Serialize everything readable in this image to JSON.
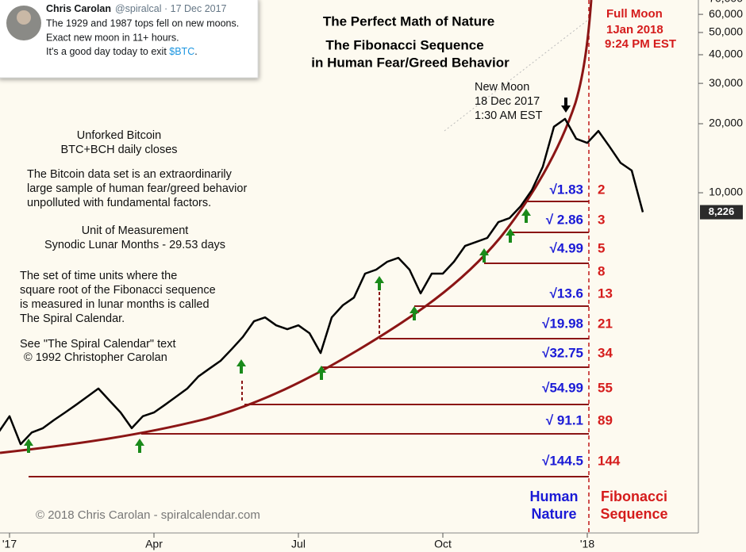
{
  "tweet": {
    "name": "Chris Carolan",
    "meta": "@spiralcal · 17 Dec 2017",
    "lines": [
      "The 1929 and 1987 tops fell on new moons.",
      "Exact new moon in 11+ hours."
    ],
    "last_line": [
      "It's a good day today to exit ",
      "$BTC",
      "."
    ]
  },
  "chart_data": {
    "type": "line",
    "title": "The Perfect Math of Nature",
    "subtitle": [
      "The Fibonacci Sequence",
      "in Human Fear/Greed Behavior"
    ],
    "full_moon": [
      "Full Moon",
      "1Jan 2018",
      "9:24 PM EST"
    ],
    "new_moon": [
      "New Moon",
      "18 Dec 2017",
      "1:30 AM EST"
    ],
    "annotations": {
      "series_note": [
        "Unforked Bitcoin",
        "BTC+BCH daily closes"
      ],
      "data_note": [
        "The Bitcoin data set is an extraordinarily",
        "large sample of human fear/greed behavior",
        "unpolluted with fundamental factors."
      ],
      "unit_note": [
        "Unit of Measurement",
        "Synodic Lunar Months - 29.53 days"
      ],
      "spiral_note": [
        "The set of time units where the",
        "square root of the Fibonacci sequence",
        "is measured in lunar months is called",
        "The Spiral Calendar."
      ],
      "source_note": [
        "See \"The Spiral Calendar\" text",
        "© 1992 Christopher Carolan"
      ],
      "copyright": "© 2018 Chris Carolan - spiralcalendar.com",
      "human_nature": [
        "Human",
        "Nature"
      ],
      "fibonacci_sequence": [
        "Fibonacci",
        "Sequence"
      ]
    },
    "fibonacci": [
      {
        "root": "√1.83",
        "number": 2
      },
      {
        "root": "√ 2.86",
        "number": 3
      },
      {
        "root": "√4.99",
        "number": 5
      },
      {
        "number": 8
      },
      {
        "root": "√13.6",
        "number": 13
      },
      {
        "root": "√19.98",
        "number": 21
      },
      {
        "root": "√32.75",
        "number": 34
      },
      {
        "root": "√54.99",
        "number": 55
      },
      {
        "root": "√ 91.1",
        "number": 89
      },
      {
        "root": "√144.5",
        "number": 144
      }
    ],
    "categories": [
      null,
      "'17",
      null,
      null,
      null,
      null,
      null,
      null,
      null,
      null,
      null,
      null,
      null,
      null,
      "Apr",
      null,
      null,
      null,
      null,
      null,
      null,
      null,
      null,
      null,
      null,
      null,
      null,
      "Jul",
      null,
      null,
      null,
      null,
      null,
      null,
      null,
      null,
      null,
      null,
      null,
      null,
      "Oct",
      null,
      null,
      null,
      null,
      null,
      null,
      null,
      null,
      null,
      null,
      null,
      null,
      "'18",
      null,
      null,
      null,
      null,
      null
    ],
    "series": [
      {
        "color": "#000000",
        "values": [
          900,
          1060,
          800,
          900,
          940,
          1020,
          1100,
          1190,
          1290,
          1400,
          1240,
          1100,
          940,
          1060,
          1100,
          1190,
          1290,
          1400,
          1580,
          1710,
          1850,
          2080,
          2350,
          2750,
          2860,
          2640,
          2540,
          2640,
          2440,
          2000,
          2860,
          3230,
          3490,
          4440,
          4620,
          5000,
          5200,
          4620,
          3640,
          4440,
          4440,
          5000,
          5860,
          6100,
          6350,
          7450,
          7750,
          8730,
          10240,
          13000,
          19400,
          21000,
          17200,
          16500,
          18600,
          15900,
          13500,
          12500,
          8226
        ]
      }
    ],
    "current_price": {
      "value": 8226,
      "label": "8,226"
    },
    "log_scale": true,
    "ylim": [
      271,
      69300
    ],
    "yticks": [
      {
        "value": 10000,
        "label": "10,000"
      },
      {
        "value": 20000,
        "label": "20,000"
      },
      {
        "value": 30000,
        "label": "30,000"
      },
      {
        "value": 40000,
        "label": "40,000"
      },
      {
        "value": 50000,
        "label": "50,000"
      },
      {
        "value": 60000,
        "label": "60,000"
      },
      {
        "value": 70000,
        "label": "70,000"
      }
    ]
  }
}
